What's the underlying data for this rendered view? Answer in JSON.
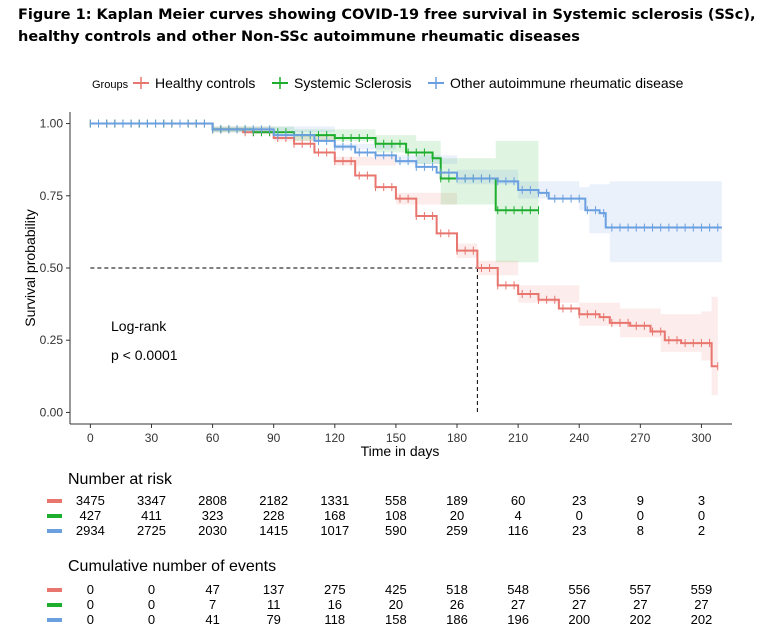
{
  "figure_title": "Figure 1: Kaplan Meier curves showing COVID-19 free survival in Systemic sclerosis (SSc), healthy controls and other Non-SSc autoimmune rheumatic diseases",
  "chart_data": {
    "type": "line",
    "subtype": "kaplan-meier step",
    "xlabel": "Time in days",
    "ylabel": "Survival probability",
    "xlim": [
      -10,
      315
    ],
    "ylim": [
      -0.04,
      1.04
    ],
    "x_ticks": [
      0,
      30,
      60,
      90,
      120,
      150,
      180,
      210,
      240,
      270,
      300
    ],
    "y_ticks": [
      0.0,
      0.25,
      0.5,
      0.75,
      1.0
    ],
    "y_tick_labels": [
      "0.00",
      "0.25",
      "0.50",
      "0.75",
      "1.00"
    ],
    "grid": false,
    "legend": {
      "title": "Groups",
      "position": "top",
      "entries": [
        "Healthy controls",
        "Systemic Sclerosis",
        "Other autoimmune rheumatic disease"
      ]
    },
    "annotations": [
      "Log-rank",
      "p < 0.0001"
    ],
    "median_line": {
      "x": 190,
      "y": 0.5
    },
    "series": [
      {
        "name": "Healthy controls",
        "color": "#E8756E",
        "points": [
          [
            0,
            1.0
          ],
          [
            40,
            1.0
          ],
          [
            60,
            0.98
          ],
          [
            75,
            0.97
          ],
          [
            90,
            0.95
          ],
          [
            100,
            0.93
          ],
          [
            110,
            0.9
          ],
          [
            120,
            0.87
          ],
          [
            130,
            0.82
          ],
          [
            140,
            0.78
          ],
          [
            150,
            0.74
          ],
          [
            160,
            0.68
          ],
          [
            170,
            0.62
          ],
          [
            180,
            0.56
          ],
          [
            190,
            0.5
          ],
          [
            200,
            0.44
          ],
          [
            210,
            0.41
          ],
          [
            220,
            0.39
          ],
          [
            230,
            0.36
          ],
          [
            240,
            0.34
          ],
          [
            250,
            0.33
          ],
          [
            255,
            0.31
          ],
          [
            265,
            0.3
          ],
          [
            275,
            0.28
          ],
          [
            282,
            0.25
          ],
          [
            290,
            0.24
          ],
          [
            300,
            0.24
          ],
          [
            305,
            0.16
          ],
          [
            308,
            0.16
          ]
        ],
        "ci_lower": [
          [
            0,
            1.0
          ],
          [
            40,
            0.995
          ],
          [
            60,
            0.97
          ],
          [
            90,
            0.94
          ],
          [
            120,
            0.855
          ],
          [
            150,
            0.72
          ],
          [
            180,
            0.535
          ],
          [
            190,
            0.475
          ],
          [
            210,
            0.38
          ],
          [
            240,
            0.3
          ],
          [
            260,
            0.26
          ],
          [
            280,
            0.21
          ],
          [
            300,
            0.18
          ],
          [
            305,
            0.06
          ],
          [
            308,
            0.06
          ]
        ],
        "ci_upper": [
          [
            0,
            1.0
          ],
          [
            40,
            1.0
          ],
          [
            60,
            0.99
          ],
          [
            90,
            0.96
          ],
          [
            120,
            0.885
          ],
          [
            150,
            0.76
          ],
          [
            180,
            0.585
          ],
          [
            190,
            0.525
          ],
          [
            210,
            0.44
          ],
          [
            240,
            0.38
          ],
          [
            260,
            0.36
          ],
          [
            280,
            0.34
          ],
          [
            300,
            0.35
          ],
          [
            305,
            0.4
          ],
          [
            308,
            0.4
          ]
        ]
      },
      {
        "name": "Systemic Sclerosis",
        "color": "#1DAE2E",
        "points": [
          [
            0,
            1.0
          ],
          [
            40,
            1.0
          ],
          [
            60,
            0.98
          ],
          [
            80,
            0.97
          ],
          [
            100,
            0.96
          ],
          [
            120,
            0.95
          ],
          [
            140,
            0.93
          ],
          [
            155,
            0.9
          ],
          [
            168,
            0.88
          ],
          [
            172,
            0.81
          ],
          [
            185,
            0.81
          ],
          [
            198,
            0.81
          ],
          [
            199,
            0.7
          ],
          [
            220,
            0.7
          ]
        ],
        "ci_lower": [
          [
            0,
            1.0
          ],
          [
            60,
            0.97
          ],
          [
            100,
            0.94
          ],
          [
            140,
            0.9
          ],
          [
            160,
            0.86
          ],
          [
            172,
            0.72
          ],
          [
            199,
            0.52
          ],
          [
            220,
            0.52
          ]
        ],
        "ci_upper": [
          [
            0,
            1.0
          ],
          [
            60,
            0.99
          ],
          [
            100,
            0.98
          ],
          [
            140,
            0.96
          ],
          [
            160,
            0.94
          ],
          [
            172,
            0.88
          ],
          [
            199,
            0.94
          ],
          [
            220,
            0.94
          ]
        ]
      },
      {
        "name": "Other autoimmune rheumatic disease",
        "color": "#6A9FE0",
        "points": [
          [
            0,
            1.0
          ],
          [
            40,
            1.0
          ],
          [
            60,
            0.98
          ],
          [
            90,
            0.96
          ],
          [
            110,
            0.94
          ],
          [
            120,
            0.92
          ],
          [
            130,
            0.9
          ],
          [
            140,
            0.89
          ],
          [
            150,
            0.87
          ],
          [
            160,
            0.85
          ],
          [
            170,
            0.83
          ],
          [
            180,
            0.81
          ],
          [
            200,
            0.8
          ],
          [
            210,
            0.77
          ],
          [
            220,
            0.76
          ],
          [
            225,
            0.74
          ],
          [
            240,
            0.74
          ],
          [
            243,
            0.7
          ],
          [
            250,
            0.69
          ],
          [
            253,
            0.64
          ],
          [
            270,
            0.64
          ],
          [
            310,
            0.64
          ]
        ],
        "ci_lower": [
          [
            0,
            1.0
          ],
          [
            60,
            0.97
          ],
          [
            120,
            0.91
          ],
          [
            150,
            0.86
          ],
          [
            180,
            0.79
          ],
          [
            210,
            0.74
          ],
          [
            240,
            0.7
          ],
          [
            245,
            0.62
          ],
          [
            255,
            0.52
          ],
          [
            310,
            0.52
          ]
        ],
        "ci_upper": [
          [
            0,
            1.0
          ],
          [
            60,
            0.99
          ],
          [
            120,
            0.93
          ],
          [
            150,
            0.89
          ],
          [
            180,
            0.84
          ],
          [
            210,
            0.8
          ],
          [
            240,
            0.78
          ],
          [
            245,
            0.79
          ],
          [
            255,
            0.8
          ],
          [
            310,
            0.8
          ]
        ]
      }
    ]
  },
  "risk_table": {
    "title": "Number at risk",
    "rows": [
      {
        "color": "#E8756E",
        "values": [
          "3475",
          "3347",
          "2808",
          "2182",
          "1331",
          "558",
          "189",
          "60",
          "23",
          "9",
          "3"
        ]
      },
      {
        "color": "#1DAE2E",
        "values": [
          "427",
          "411",
          "323",
          "228",
          "168",
          "108",
          "20",
          "4",
          "0",
          "0",
          "0"
        ]
      },
      {
        "color": "#6A9FE0",
        "values": [
          "2934",
          "2725",
          "2030",
          "1415",
          "1017",
          "590",
          "259",
          "116",
          "23",
          "8",
          "2"
        ]
      }
    ]
  },
  "events_table": {
    "title": "Cumulative number of events",
    "rows": [
      {
        "color": "#E8756E",
        "values": [
          "0",
          "0",
          "47",
          "137",
          "275",
          "425",
          "518",
          "548",
          "556",
          "557",
          "559"
        ]
      },
      {
        "color": "#1DAE2E",
        "values": [
          "0",
          "0",
          "7",
          "11",
          "16",
          "20",
          "26",
          "27",
          "27",
          "27",
          "27"
        ]
      },
      {
        "color": "#6A9FE0",
        "values": [
          "0",
          "0",
          "41",
          "79",
          "118",
          "158",
          "186",
          "196",
          "200",
          "202",
          "202"
        ]
      }
    ]
  }
}
